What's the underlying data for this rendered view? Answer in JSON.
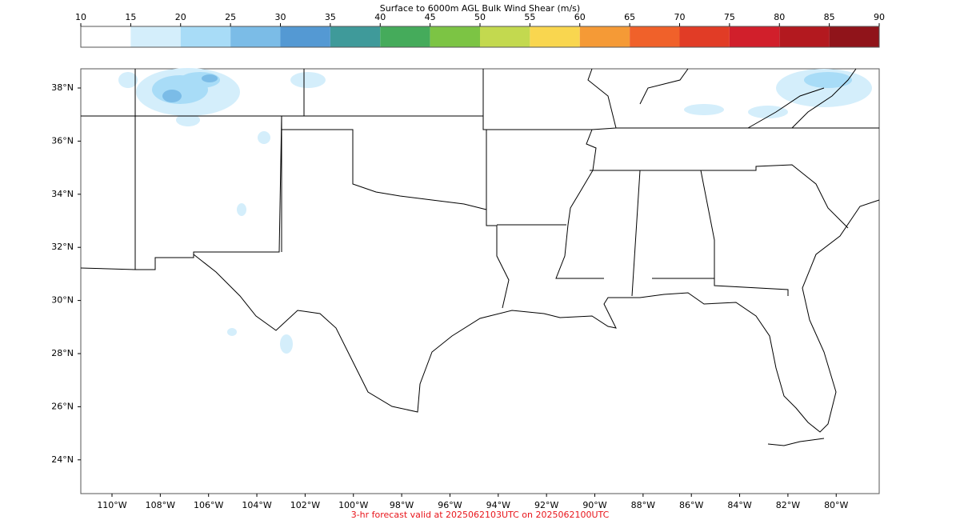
{
  "colorbar": {
    "title": "Surface to 6000m AGL Bulk Wind Shear (m/s)",
    "ticks": [
      10,
      15,
      20,
      25,
      30,
      35,
      40,
      45,
      50,
      55,
      60,
      65,
      70,
      75,
      80,
      85,
      90
    ],
    "colors": [
      "#ffffff",
      "#d4eefb",
      "#a8dcf7",
      "#7bbce7",
      "#5499d3",
      "#3f9a9a",
      "#45ab5b",
      "#7cc444",
      "#c3d94f",
      "#f9d64f",
      "#f59a36",
      "#f0612a",
      "#e13c26",
      "#d11f2b",
      "#b3191f",
      "#90141a"
    ]
  },
  "map": {
    "lat_labels": [
      "38°N",
      "36°N",
      "34°N",
      "32°N",
      "30°N",
      "28°N",
      "26°N",
      "24°N"
    ],
    "lon_labels": [
      "110°W",
      "108°W",
      "106°W",
      "104°W",
      "102°W",
      "100°W",
      "98°W",
      "96°W",
      "94°W",
      "92°W",
      "90°W",
      "88°W",
      "86°W",
      "84°W",
      "82°W",
      "80°W"
    ]
  },
  "footer": "3-hr forecast valid at 2025062103UTC on 2025062100UTC"
}
